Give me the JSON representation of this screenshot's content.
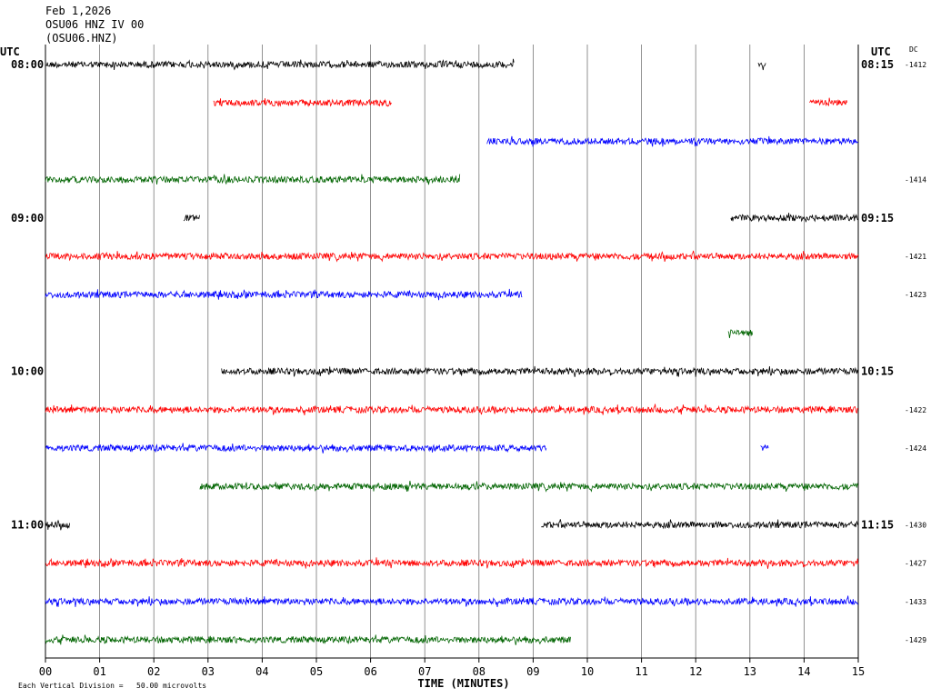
{
  "header": {
    "date": "Feb 1,2026",
    "station_line": "OSU06 HNZ IV 00",
    "channel_code": "(OSU06.HNZ)"
  },
  "labels": {
    "utc_left": "UTC",
    "utc_right": "UTC",
    "dc": "DC",
    "xlabel": "TIME (MINUTES)",
    "footer": "Each Vertical Division =   50.00 microvolts"
  },
  "colors": {
    "series": [
      "#000000",
      "#ff0000",
      "#0000ff",
      "#006400"
    ],
    "grid": "#777777",
    "axis": "#000000"
  },
  "chart_data": {
    "type": "line",
    "subtype": "helicorder",
    "x_range": [
      0,
      15
    ],
    "x_ticks": [
      "00",
      "01",
      "02",
      "03",
      "04",
      "05",
      "06",
      "07",
      "08",
      "09",
      "10",
      "11",
      "12",
      "13",
      "14",
      "15"
    ],
    "vertical_division_microvolts": 50.0,
    "rows": [
      {
        "row": 0,
        "left_label": "08:00",
        "right_label": "08:15",
        "dc": "-1412",
        "segments": [
          [
            0,
            8.65
          ],
          [
            13.15,
            13.3
          ]
        ]
      },
      {
        "row": 1,
        "left_label": "",
        "right_label": "",
        "dc": "",
        "segments": [
          [
            3.1,
            6.4
          ],
          [
            14.1,
            14.8
          ]
        ]
      },
      {
        "row": 2,
        "left_label": "",
        "right_label": "",
        "dc": "",
        "segments": [
          [
            8.15,
            15
          ]
        ]
      },
      {
        "row": 3,
        "left_label": "",
        "right_label": "",
        "dc": "-1414",
        "segments": [
          [
            0,
            7.65
          ]
        ]
      },
      {
        "row": 4,
        "left_label": "09:00",
        "right_label": "09:15",
        "dc": "",
        "segments": [
          [
            2.55,
            2.85
          ],
          [
            12.65,
            15
          ]
        ]
      },
      {
        "row": 5,
        "left_label": "",
        "right_label": "",
        "dc": "-1421",
        "segments": [
          [
            0,
            15
          ]
        ]
      },
      {
        "row": 6,
        "left_label": "",
        "right_label": "",
        "dc": "-1423",
        "segments": [
          [
            0,
            8.8
          ]
        ]
      },
      {
        "row": 7,
        "left_label": "",
        "right_label": "",
        "dc": "",
        "segments": [
          [
            12.6,
            13.05
          ]
        ]
      },
      {
        "row": 8,
        "left_label": "10:00",
        "right_label": "10:15",
        "dc": "",
        "segments": [
          [
            3.25,
            15
          ]
        ]
      },
      {
        "row": 9,
        "left_label": "",
        "right_label": "",
        "dc": "-1422",
        "segments": [
          [
            0,
            15
          ]
        ]
      },
      {
        "row": 10,
        "left_label": "",
        "right_label": "",
        "dc": "-1424",
        "segments": [
          [
            0,
            9.25
          ],
          [
            13.2,
            13.35
          ]
        ]
      },
      {
        "row": 11,
        "left_label": "",
        "right_label": "",
        "dc": "",
        "segments": [
          [
            2.85,
            15
          ]
        ]
      },
      {
        "row": 12,
        "left_label": "11:00",
        "right_label": "11:15",
        "dc": "-1430",
        "segments": [
          [
            0,
            0.45
          ],
          [
            9.15,
            15
          ]
        ]
      },
      {
        "row": 13,
        "left_label": "",
        "right_label": "",
        "dc": "-1427",
        "segments": [
          [
            0,
            15
          ]
        ]
      },
      {
        "row": 14,
        "left_label": "",
        "right_label": "",
        "dc": "-1433",
        "segments": [
          [
            0,
            15
          ]
        ]
      },
      {
        "row": 15,
        "left_label": "",
        "right_label": "",
        "dc": "-1429",
        "segments": [
          [
            0,
            9.7
          ]
        ]
      }
    ]
  }
}
